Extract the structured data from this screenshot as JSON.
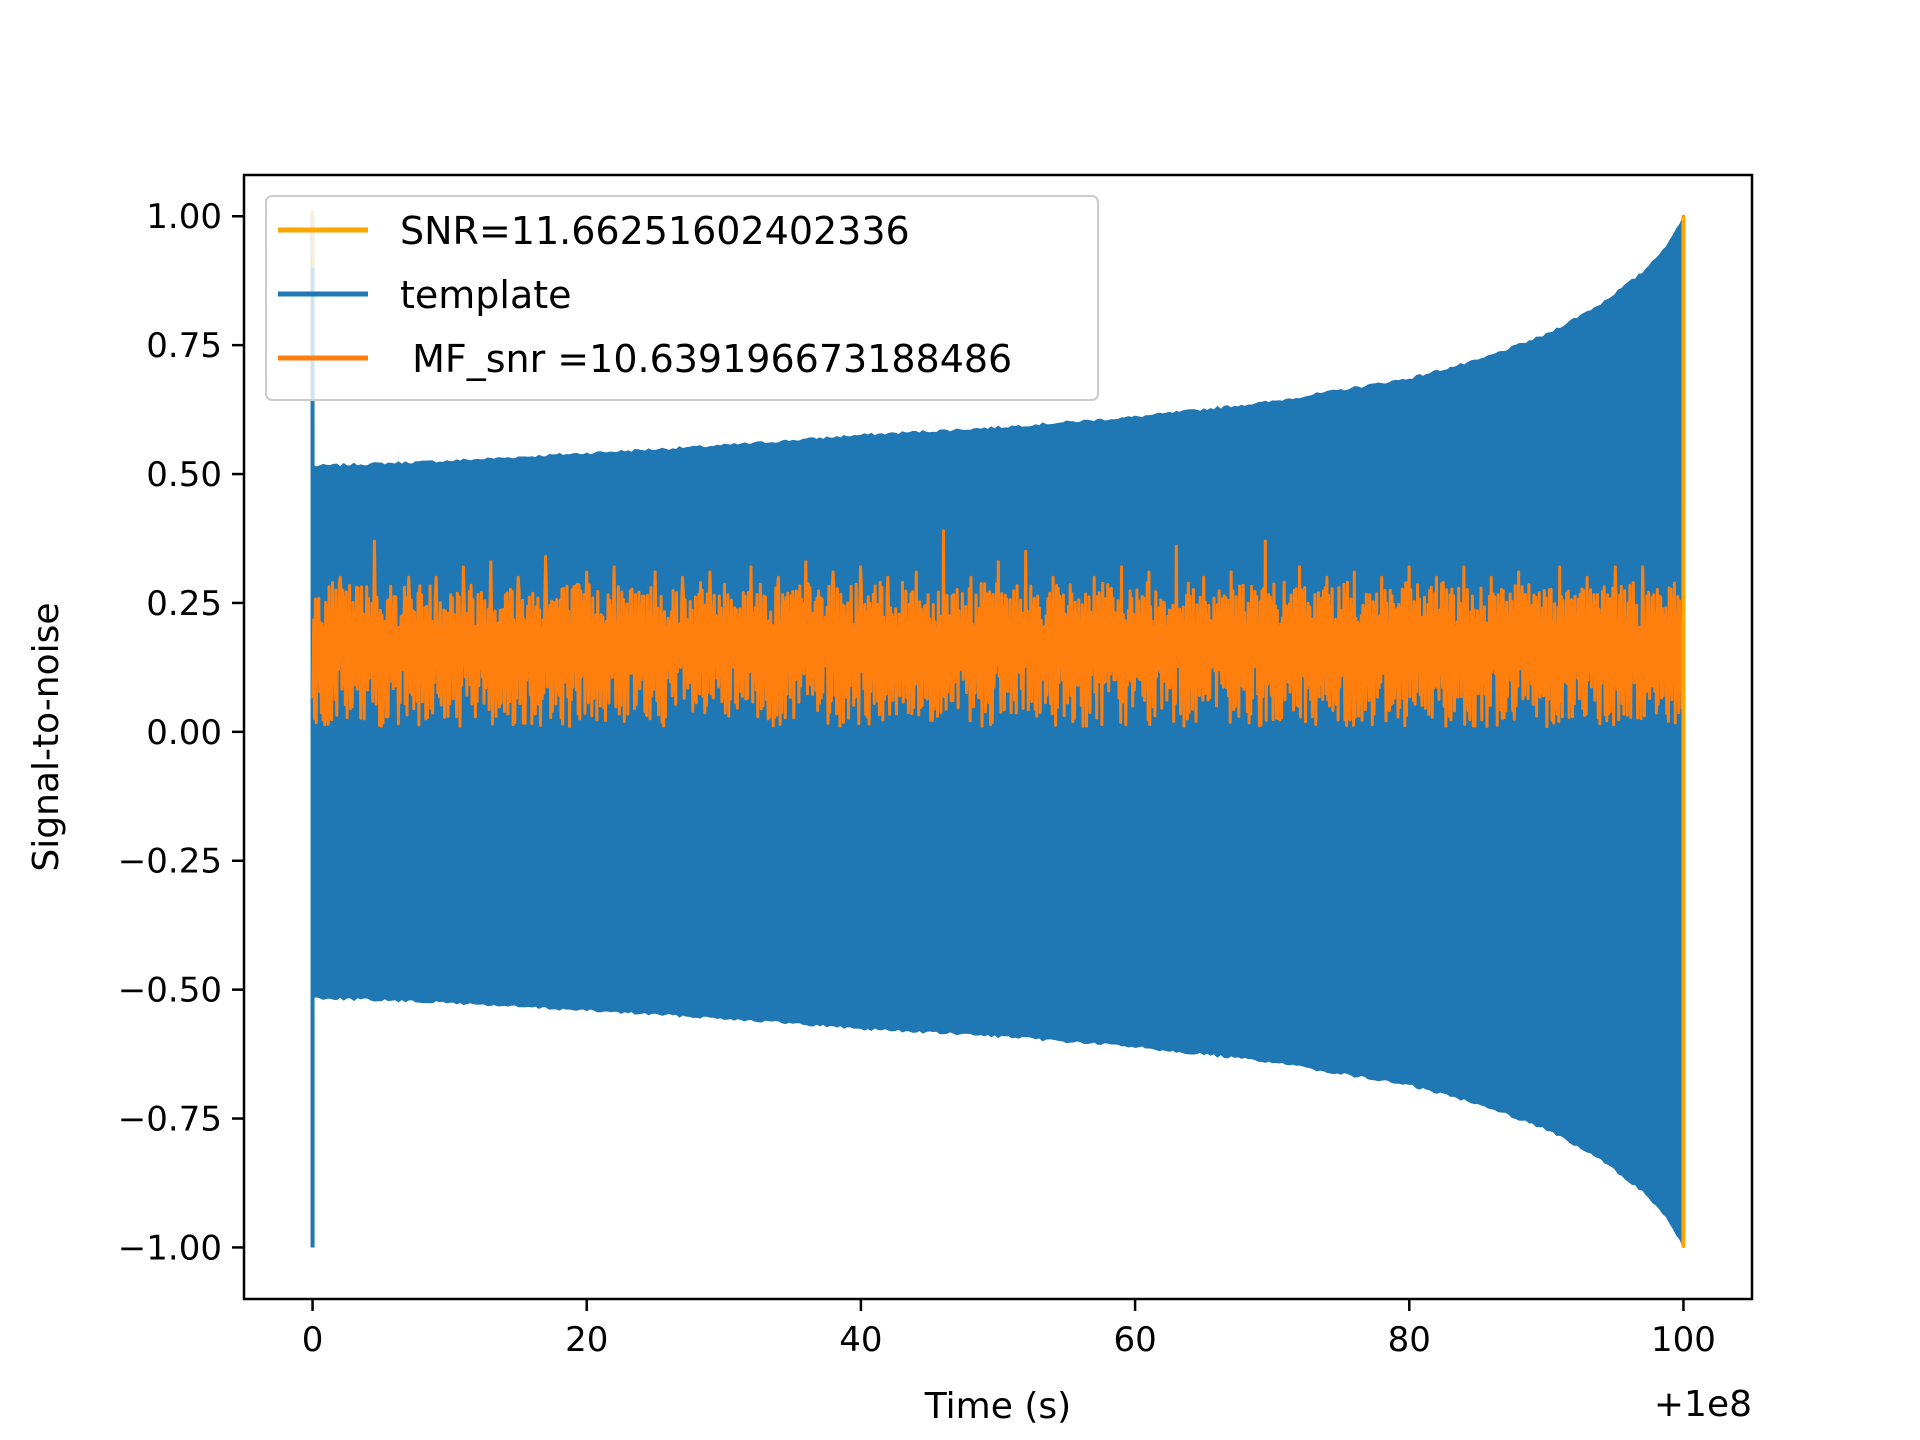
{
  "chart_data": {
    "type": "line",
    "xlabel": "Time (s)",
    "ylabel": "Signal-to-noise",
    "x_offset_label": "+1e8",
    "xlim": [
      -5,
      105
    ],
    "ylim": [
      -1.1,
      1.08
    ],
    "x_ticks": [
      0,
      20,
      40,
      60,
      80,
      100
    ],
    "x_tick_labels": [
      "0",
      "20",
      "40",
      "60",
      "80",
      "100"
    ],
    "y_ticks": [
      1.0,
      0.75,
      0.5,
      0.25,
      0.0,
      -0.25,
      -0.5,
      -0.75,
      -1.0
    ],
    "y_tick_labels": [
      "1.00",
      "0.75",
      "0.50",
      "0.25",
      "0.00",
      "−0.25",
      "−0.50",
      "−0.75",
      "−1.00"
    ],
    "grid": false,
    "legend_position": "upper-left",
    "series": [
      {
        "name": "SNR=11.66251602402336",
        "color": "#ffa500",
        "role": "snr-peak",
        "x": [
          0,
          0.02,
          99.98,
          100.0,
          100.05
        ],
        "y": [
          1.01,
          0.0,
          0.0,
          1.0,
          0.0
        ]
      },
      {
        "name": "template",
        "color": "#1f77b4",
        "role": "chirp-envelope",
        "envelope_x": [
          0,
          10,
          20,
          30,
          40,
          50,
          60,
          70,
          80,
          85,
          90,
          94,
          97,
          99,
          100
        ],
        "envelope_y": [
          0.515,
          0.525,
          0.54,
          0.555,
          0.575,
          0.59,
          0.61,
          0.64,
          0.685,
          0.72,
          0.77,
          0.83,
          0.89,
          0.95,
          1.0
        ],
        "start_spike": [
          0,
          1.0,
          -1.0
        ]
      },
      {
        "name": " MF_snr =10.639196673188486",
        "color": "#ff7f0e",
        "role": "matched-filter-output",
        "base_range": [
          0.0,
          0.28
        ],
        "peaks": [
          [
            2,
            0.3
          ],
          [
            4.5,
            0.37
          ],
          [
            7,
            0.3
          ],
          [
            9,
            0.3
          ],
          [
            11,
            0.32
          ],
          [
            13,
            0.33
          ],
          [
            15,
            0.3
          ],
          [
            17,
            0.34
          ],
          [
            20,
            0.31
          ],
          [
            22,
            0.32
          ],
          [
            25,
            0.31
          ],
          [
            27,
            0.3
          ],
          [
            29,
            0.31
          ],
          [
            32,
            0.32
          ],
          [
            34,
            0.3
          ],
          [
            36,
            0.33
          ],
          [
            38,
            0.31
          ],
          [
            40,
            0.32
          ],
          [
            42,
            0.3
          ],
          [
            44,
            0.31
          ],
          [
            46,
            0.39
          ],
          [
            48,
            0.3
          ],
          [
            50,
            0.33
          ],
          [
            52,
            0.35
          ],
          [
            54,
            0.3
          ],
          [
            57,
            0.3
          ],
          [
            59,
            0.32
          ],
          [
            61,
            0.31
          ],
          [
            63,
            0.36
          ],
          [
            65,
            0.3
          ],
          [
            67,
            0.31
          ],
          [
            69.5,
            0.37
          ],
          [
            72,
            0.32
          ],
          [
            74,
            0.3
          ],
          [
            76,
            0.31
          ],
          [
            78,
            0.3
          ],
          [
            80,
            0.32
          ],
          [
            82,
            0.3
          ],
          [
            84,
            0.32
          ],
          [
            86,
            0.3
          ],
          [
            88,
            0.31
          ],
          [
            91,
            0.32
          ],
          [
            93,
            0.3
          ],
          [
            95,
            0.32
          ],
          [
            97,
            0.32
          ]
        ],
        "final_peak": [
          100.0,
          1.0
        ]
      }
    ]
  }
}
